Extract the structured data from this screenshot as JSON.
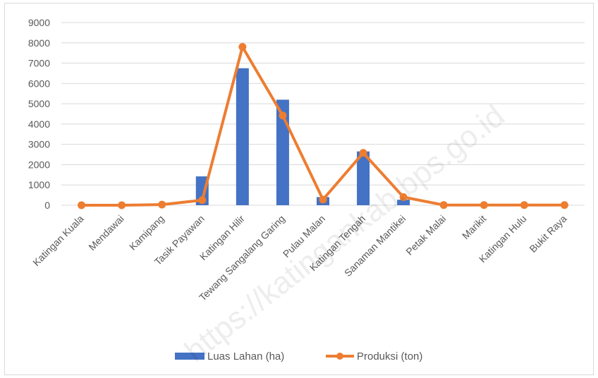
{
  "chart_data": {
    "type": "bar",
    "title": "",
    "xlabel": "",
    "ylabel": "",
    "ylim": [
      0,
      9000
    ],
    "yticks": [
      0,
      1000,
      2000,
      3000,
      4000,
      5000,
      6000,
      7000,
      8000,
      9000
    ],
    "grid": true,
    "legend_position": "bottom",
    "categories": [
      "Katingan Kuala",
      "Mendawai",
      "Kamipang",
      "Tasik Payawan",
      "Katingan  Hilir",
      "Tewang Sangalang Garing",
      "Pulau Malan",
      "Katingan Tengah",
      "Sanaman  Mantikei",
      "Petak Malai",
      "Marikit",
      "Katingan Hulu",
      "Bukit Raya"
    ],
    "series": [
      {
        "name": "Luas Lahan (ha)",
        "type": "bar",
        "color": "#4472C4",
        "values": [
          0,
          0,
          0,
          1420,
          6750,
          5200,
          400,
          2650,
          270,
          0,
          0,
          0,
          0
        ]
      },
      {
        "name": "Produksi (ton)",
        "type": "line",
        "color": "#ED7D31",
        "values": [
          0,
          0,
          30,
          250,
          7800,
          4420,
          280,
          2580,
          400,
          10,
          10,
          10,
          10
        ]
      }
    ],
    "watermark": "https://katingankab.bps.go.id"
  }
}
